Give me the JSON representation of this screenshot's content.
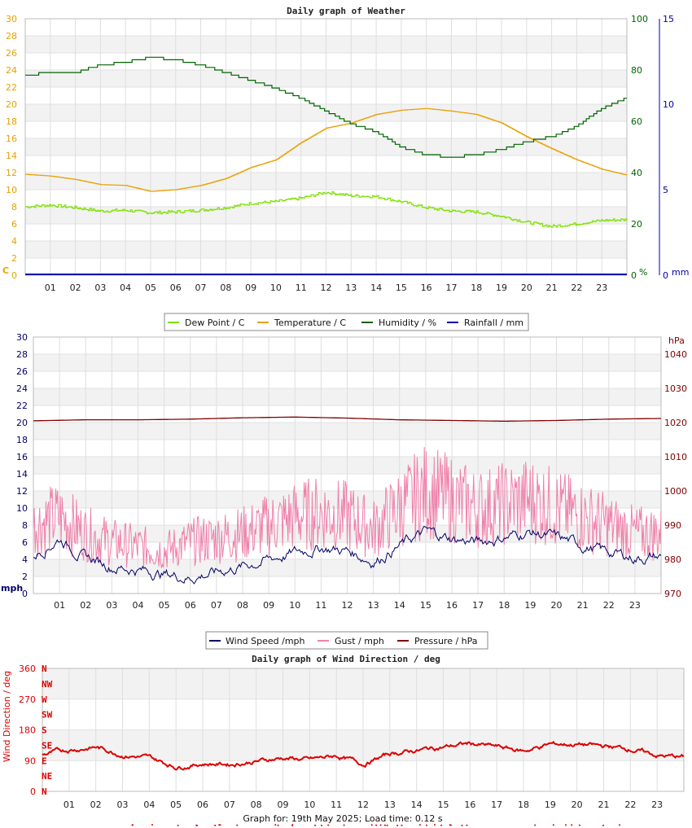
{
  "chart_data": [
    {
      "type": "line",
      "title": "Daily graph of Weather",
      "x_ticks": [
        "01",
        "02",
        "03",
        "04",
        "05",
        "06",
        "07",
        "08",
        "09",
        "10",
        "11",
        "12",
        "13",
        "14",
        "15",
        "16",
        "17",
        "18",
        "19",
        "20",
        "21",
        "22",
        "23"
      ],
      "xlim": [
        0,
        24
      ],
      "left_axis": {
        "unit": "C",
        "range": [
          0,
          30
        ],
        "ticks": [
          "0",
          "2",
          "4",
          "6",
          "8",
          "10",
          "12",
          "14",
          "16",
          "18",
          "20",
          "22",
          "24",
          "26",
          "28",
          "30"
        ],
        "color": "#e8a000"
      },
      "right_axis_1": {
        "unit": "%",
        "range": [
          0,
          100
        ],
        "ticks": [
          "0",
          "20",
          "40",
          "60",
          "80",
          "100"
        ],
        "color": "#006400"
      },
      "right_axis_2": {
        "unit": "mm",
        "range": [
          0,
          15
        ],
        "ticks": [
          "0",
          "5",
          "10",
          "15"
        ],
        "color": "#0000aa"
      },
      "grid": true,
      "legend_position": "bottom",
      "series": [
        {
          "name": "Dew Point / C",
          "axis": "left",
          "color": "#7fe000",
          "x": [
            0,
            1,
            2,
            3,
            4,
            5,
            6,
            7,
            8,
            9,
            10,
            11,
            12,
            13,
            14,
            15,
            16,
            17,
            18,
            19,
            20,
            21,
            22,
            23,
            24
          ],
          "values": [
            8.0,
            8.2,
            7.9,
            7.5,
            7.6,
            7.3,
            7.4,
            7.6,
            7.9,
            8.4,
            8.6,
            9.0,
            9.7,
            9.3,
            9.2,
            8.6,
            7.9,
            7.5,
            7.4,
            6.9,
            6.2,
            5.7,
            6.0,
            6.4,
            6.5
          ]
        },
        {
          "name": "Temperature / C",
          "axis": "left",
          "color": "#e8a000",
          "x": [
            0,
            1,
            2,
            3,
            4,
            5,
            6,
            7,
            8,
            9,
            10,
            11,
            12,
            13,
            14,
            15,
            16,
            17,
            18,
            19,
            20,
            21,
            22,
            23,
            24
          ],
          "values": [
            11.8,
            11.6,
            11.2,
            10.6,
            10.5,
            9.8,
            10.0,
            10.5,
            11.3,
            12.6,
            13.5,
            15.5,
            17.2,
            17.8,
            18.8,
            19.3,
            19.5,
            19.2,
            18.8,
            17.8,
            16.2,
            14.8,
            13.5,
            12.4,
            11.7
          ]
        },
        {
          "name": "Humidity / %",
          "axis": "right_1",
          "color": "#006400",
          "x": [
            0,
            1,
            2,
            3,
            4,
            5,
            6,
            7,
            8,
            9,
            10,
            11,
            12,
            13,
            14,
            15,
            16,
            17,
            18,
            19,
            20,
            21,
            22,
            23,
            24
          ],
          "values": [
            78,
            79,
            79,
            82,
            83,
            85,
            84,
            82,
            79,
            76,
            73,
            69,
            64,
            59,
            56,
            50,
            47,
            46,
            47,
            49,
            52,
            54,
            58,
            65,
            69
          ]
        },
        {
          "name": "Rainfall / mm",
          "axis": "right_2",
          "color": "#0000aa",
          "x": [
            0,
            24
          ],
          "values": [
            0,
            0
          ]
        }
      ]
    },
    {
      "type": "line",
      "title": "",
      "x_ticks": [
        "01",
        "02",
        "03",
        "04",
        "05",
        "06",
        "07",
        "08",
        "09",
        "10",
        "11",
        "12",
        "13",
        "14",
        "15",
        "16",
        "17",
        "18",
        "19",
        "20",
        "21",
        "22",
        "23"
      ],
      "xlim": [
        0,
        24
      ],
      "left_axis": {
        "unit": "mph",
        "range": [
          0,
          30
        ],
        "ticks": [
          "0",
          "2",
          "4",
          "6",
          "8",
          "10",
          "12",
          "14",
          "16",
          "18",
          "20",
          "22",
          "24",
          "26",
          "28",
          "30"
        ],
        "color": "#000066"
      },
      "right_axis": {
        "unit": "hPa",
        "range": [
          970,
          1045
        ],
        "ticks": [
          "970",
          "980",
          "990",
          "1000",
          "1010",
          "1020",
          "1030",
          "1040"
        ],
        "color": "#800000"
      },
      "grid": true,
      "legend_position": "bottom",
      "series": [
        {
          "name": "Wind Speed /mph",
          "axis": "left",
          "color": "#000066",
          "x": [
            0,
            1,
            2,
            3,
            4,
            5,
            6,
            7,
            8,
            9,
            10,
            11,
            12,
            13,
            14,
            15,
            16,
            17,
            18,
            19,
            20,
            21,
            22,
            23,
            24
          ],
          "values": [
            4.5,
            6.5,
            4.2,
            3.2,
            2.8,
            2.3,
            1.9,
            2.5,
            3.2,
            4.0,
            4.8,
            5.4,
            5.0,
            3.8,
            5.6,
            7.2,
            6.4,
            6.0,
            6.6,
            7.2,
            6.5,
            5.6,
            4.8,
            4.2,
            4.3
          ]
        },
        {
          "name": "Gust / mph",
          "axis": "left",
          "color": "#f080a8",
          "x": [
            0,
            1,
            2,
            3,
            4,
            5,
            6,
            7,
            8,
            9,
            10,
            11,
            12,
            13,
            14,
            15,
            16,
            17,
            18,
            19,
            20,
            21,
            22,
            23,
            24
          ],
          "values": [
            8,
            9,
            7,
            6,
            5.5,
            5,
            6,
            6.5,
            7,
            8,
            9,
            9.5,
            9,
            7.5,
            10,
            12,
            11,
            10,
            10.5,
            11,
            10,
            9,
            8,
            7,
            7
          ]
        },
        {
          "name": "Pressure / hPa",
          "axis": "right",
          "color": "#800000",
          "x": [
            0,
            2,
            4,
            6,
            8,
            10,
            12,
            14,
            16,
            18,
            20,
            22,
            24
          ],
          "values": [
            1020.5,
            1020.8,
            1020.8,
            1021.0,
            1021.4,
            1021.6,
            1021.3,
            1020.8,
            1020.6,
            1020.4,
            1020.6,
            1021.0,
            1021.2
          ]
        }
      ]
    },
    {
      "type": "scatter",
      "title": "Daily graph of Wind Direction / deg",
      "x_ticks": [
        "01",
        "02",
        "03",
        "04",
        "05",
        "06",
        "07",
        "08",
        "09",
        "10",
        "11",
        "12",
        "13",
        "14",
        "15",
        "16",
        "17",
        "18",
        "19",
        "20",
        "21",
        "22",
        "23"
      ],
      "xlim": [
        0,
        24
      ],
      "ylabel": "Wind Direction / deg",
      "ylim": [
        0,
        360
      ],
      "y_ticks": [
        "0",
        "90",
        "180",
        "270",
        "360"
      ],
      "compass_labels": [
        "N",
        "NE",
        "E",
        "SE",
        "S",
        "SW",
        "W",
        "NW",
        "N"
      ],
      "color": "#dd0000",
      "grid": true,
      "series": [
        {
          "name": "",
          "color": "#dd0000",
          "x": [
            0,
            1,
            2,
            3,
            4,
            5,
            6,
            7,
            8,
            9,
            10,
            11,
            12,
            13,
            14,
            15,
            16,
            17,
            18,
            19,
            20,
            21,
            22,
            23,
            24
          ],
          "values": [
            108,
            122,
            130,
            108,
            98,
            72,
            82,
            80,
            88,
            98,
            92,
            104,
            80,
            110,
            120,
            130,
            140,
            130,
            118,
            138,
            138,
            132,
            125,
            105,
            100
          ]
        }
      ],
      "footer": "Graph for: 19th May 2025; Load time: 0.12 s"
    }
  ]
}
